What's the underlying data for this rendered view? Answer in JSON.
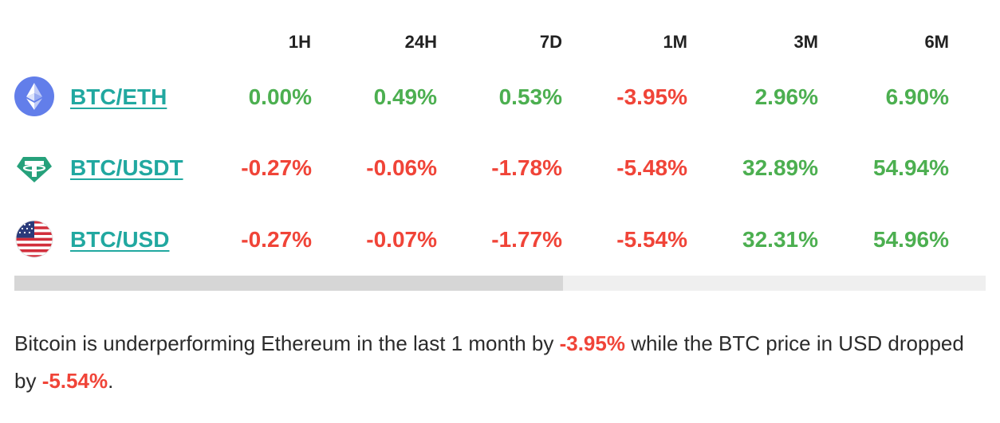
{
  "columns": [
    "1H",
    "24H",
    "7D",
    "1M",
    "3M",
    "6M"
  ],
  "rows": [
    {
      "icon": "ethereum-icon",
      "pair": "BTC/ETH",
      "values": [
        "0.00%",
        "0.49%",
        "0.53%",
        "-3.95%",
        "2.96%",
        "6.90%"
      ],
      "trend": [
        "up",
        "up",
        "up",
        "down",
        "up",
        "up"
      ]
    },
    {
      "icon": "tether-icon",
      "pair": "BTC/USDT",
      "values": [
        "-0.27%",
        "-0.06%",
        "-1.78%",
        "-5.48%",
        "32.89%",
        "54.94%"
      ],
      "trend": [
        "down",
        "down",
        "down",
        "down",
        "up",
        "up"
      ]
    },
    {
      "icon": "us-flag-icon",
      "pair": "BTC/USD",
      "values": [
        "-0.27%",
        "-0.07%",
        "-1.77%",
        "-5.54%",
        "32.31%",
        "54.96%"
      ],
      "trend": [
        "down",
        "down",
        "down",
        "down",
        "up",
        "up"
      ]
    }
  ],
  "scrollbar": {
    "thumb_fraction": 0.565
  },
  "summary": {
    "part1": "Bitcoin is underperforming Ethereum in the last 1 month by ",
    "value1": "-3.95%",
    "part2": " while the BTC price in USD dropped by ",
    "value2": "-5.54%",
    "part3": "."
  },
  "colors": {
    "positive": "#4caf50",
    "negative": "#f04438",
    "link": "#21a8a0",
    "ethereum": "#627eea",
    "tether": "#26a17b"
  }
}
